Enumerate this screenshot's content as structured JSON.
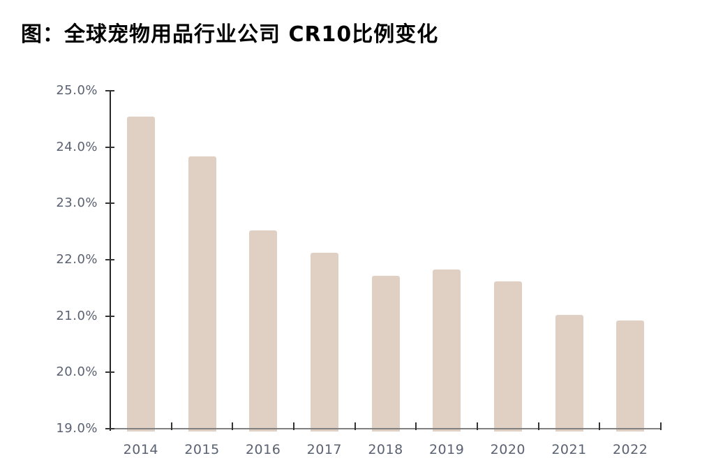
{
  "title": "图：全球宠物用品行业公司 CR10比例变化",
  "colors": {
    "bar": "#e0d0c3",
    "y_axis_line": "#262626",
    "x_axis_line": "#808080",
    "tick_mark": "#333333",
    "tick_label": "#5a6171",
    "title": "#000000"
  },
  "chart_data": {
    "type": "bar",
    "title": "图：全球宠物用品行业公司 CR10比例变化",
    "categories": [
      "2014",
      "2015",
      "2016",
      "2017",
      "2018",
      "2019",
      "2020",
      "2021",
      "2022"
    ],
    "values": [
      24.54,
      23.84,
      22.52,
      22.12,
      21.72,
      21.83,
      21.62,
      21.02,
      20.92
    ],
    "xlabel": "",
    "ylabel": "",
    "ylim": [
      19,
      25
    ],
    "ytick_step": 1,
    "ytick_labels": [
      "19.0%",
      "20.0%",
      "21.0%",
      "22.0%",
      "23.0%",
      "24.0%",
      "25.0%"
    ],
    "grid": false,
    "legend": null,
    "bar_color": "#e0d0c3"
  }
}
